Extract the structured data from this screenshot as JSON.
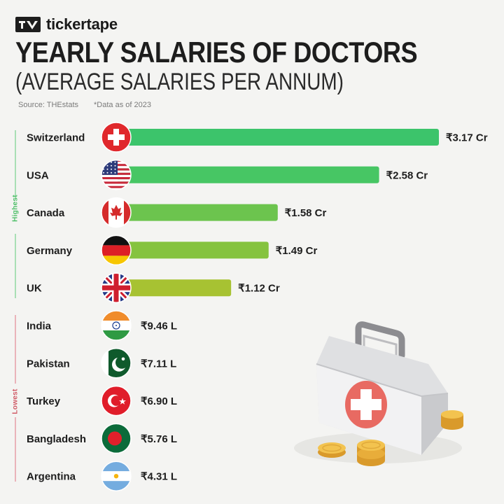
{
  "brand": {
    "name": "tickertape",
    "logo_icon": "tickertape-logo-icon"
  },
  "header": {
    "title": "YEARLY SALARIES OF DOCTORS",
    "subtitle": "(AVERAGE SALARIES PER ANNUM)",
    "source": "Source: THEstats",
    "note": "*Data as of 2023"
  },
  "groups": {
    "highest": "Highest",
    "lowest": "Lowest"
  },
  "colors": {
    "background": "#f4f4f2",
    "bar_gradient": [
      "#3cc46b",
      "#47c664",
      "#6cc44e",
      "#85c33f",
      "#a7c232"
    ],
    "highest_accent": "#4fbf69",
    "lowest_accent": "#d05a66"
  },
  "illustration": {
    "icon": "first-aid-kit-icon",
    "coins": "coin-stack-icon"
  },
  "chart_data": {
    "type": "bar",
    "orientation": "horizontal",
    "title": "YEARLY SALARIES OF DOCTORS",
    "subtitle": "(AVERAGE SALARIES PER ANNUM)",
    "unit": "₹",
    "categories": [
      "Switzerland",
      "USA",
      "Canada",
      "Germany",
      "UK",
      "India",
      "Pakistan",
      "Turkey",
      "Bangladesh",
      "Argentina"
    ],
    "values_inr": [
      31700000,
      25800000,
      15800000,
      14900000,
      11200000,
      946000,
      711000,
      690000,
      576000,
      431000
    ],
    "labels": [
      "₹3.17 Cr",
      "₹2.58 Cr",
      "₹1.58 Cr",
      "₹1.49 Cr",
      "₹1.12 Cr",
      "₹9.46 L",
      "₹7.11 L",
      "₹6.90 L",
      "₹5.76 L",
      "₹4.31 L"
    ],
    "flags": [
      "switzerland",
      "usa",
      "canada",
      "germany",
      "uk",
      "india",
      "pakistan",
      "turkey",
      "bangladesh",
      "argentina"
    ],
    "groups": [
      "highest",
      "highest",
      "highest",
      "highest",
      "highest",
      "lowest",
      "lowest",
      "lowest",
      "lowest",
      "lowest"
    ],
    "xlim": [
      0,
      31700000
    ],
    "grid": false,
    "legend": "none"
  }
}
